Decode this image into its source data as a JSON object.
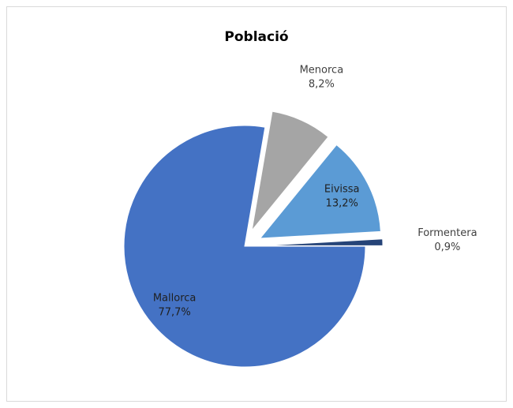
{
  "chart_data": {
    "type": "pie",
    "title": "Població",
    "categories": [
      "Mallorca",
      "Menorca",
      "Eivissa",
      "Formentera"
    ],
    "values": [
      77.7,
      8.2,
      13.2,
      0.9
    ],
    "value_labels": [
      "77,7%",
      "8,2%",
      "13,2%",
      "0,9%"
    ],
    "colors": [
      "#4472c4",
      "#a5a5a5",
      "#5b9bd5",
      "#264478"
    ]
  }
}
